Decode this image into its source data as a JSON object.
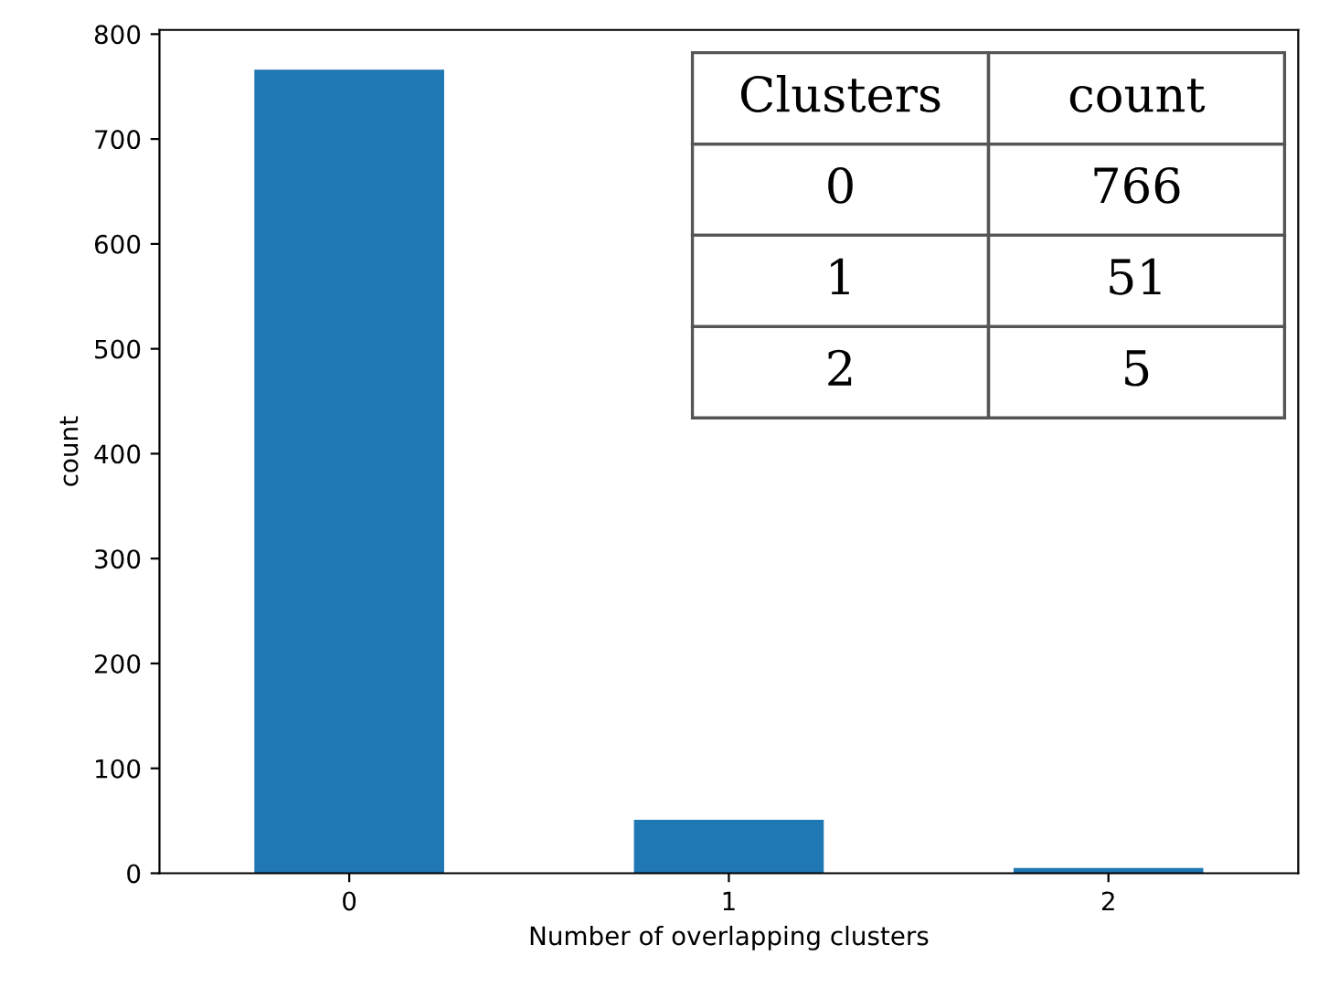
{
  "chart_data": {
    "type": "bar",
    "xlabel": "Number of overlapping clusters",
    "ylabel": "count",
    "categories": [
      "0",
      "1",
      "2"
    ],
    "values": [
      766,
      51,
      5
    ],
    "color": "#1f77b4",
    "ylim": [
      0,
      804
    ],
    "yticks": [
      0,
      100,
      200,
      300,
      400,
      500,
      600,
      700,
      800
    ],
    "grid": false,
    "legend": false,
    "annotations": [
      "Clusters",
      "count",
      "0",
      "766",
      "1",
      "51",
      "2",
      "5"
    ]
  }
}
